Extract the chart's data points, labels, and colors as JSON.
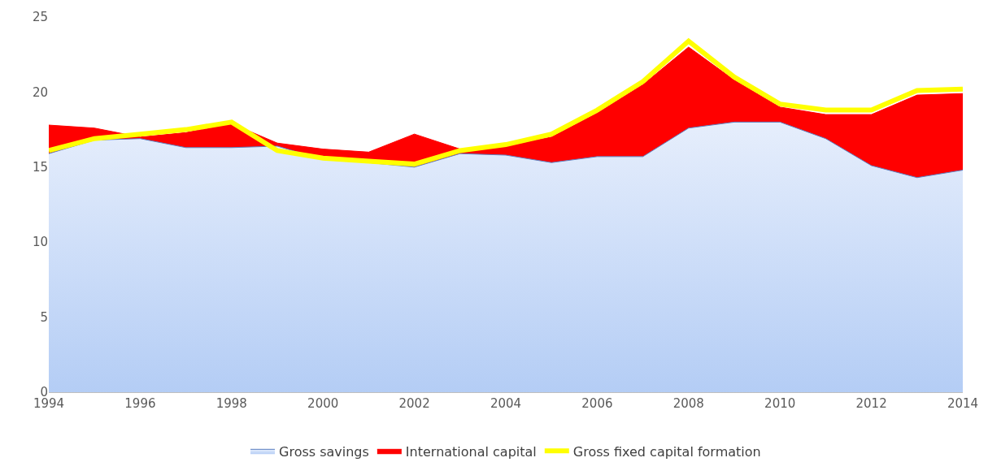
{
  "chart_data": {
    "type": "area",
    "stacked": true,
    "x": [
      1994,
      1995,
      1996,
      1997,
      1998,
      1999,
      2000,
      2001,
      2002,
      2003,
      2004,
      2005,
      2006,
      2007,
      2008,
      2009,
      2010,
      2011,
      2012,
      2013,
      2014
    ],
    "series": [
      {
        "name": "Gross savings",
        "color": "#b4cdf5",
        "values": [
          15.9,
          16.8,
          16.9,
          16.3,
          16.3,
          16.4,
          15.5,
          15.3,
          15.0,
          15.9,
          15.8,
          15.3,
          15.7,
          15.7,
          17.6,
          18.0,
          18.0,
          16.9,
          15.1,
          14.3,
          14.8
        ]
      },
      {
        "name": "International capital",
        "color": "#ff0000",
        "values": [
          1.9,
          0.8,
          0.1,
          1.0,
          1.6,
          0.2,
          0.7,
          0.7,
          2.2,
          0.3,
          0.6,
          1.7,
          2.9,
          4.8,
          5.4,
          2.8,
          1.0,
          1.6,
          3.4,
          5.5,
          5.1
        ]
      },
      {
        "name": "Gross fixed capital formation",
        "type": "line",
        "color": "#ffff00",
        "values": [
          16.1,
          16.9,
          17.2,
          17.5,
          18.0,
          16.1,
          15.6,
          15.4,
          15.2,
          16.1,
          16.5,
          17.2,
          18.8,
          20.7,
          23.4,
          21.0,
          19.2,
          18.8,
          18.8,
          20.1,
          20.2
        ]
      }
    ],
    "xlim": [
      1994,
      2014
    ],
    "xticks": [
      1994,
      1996,
      1998,
      2000,
      2002,
      2004,
      2006,
      2008,
      2010,
      2012,
      2014
    ],
    "ylim": [
      0,
      25
    ],
    "yticks": [
      0,
      5,
      10,
      15,
      20,
      25
    ],
    "grid": false,
    "legend": "bottom",
    "marker": "none"
  }
}
